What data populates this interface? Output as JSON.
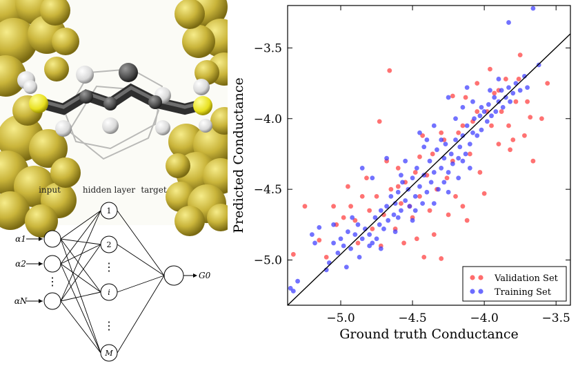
{
  "network": {
    "labels": {
      "input": "input",
      "hidden": "hidden layer",
      "target": "target"
    },
    "input_nodes": [
      "α1",
      "α2",
      "⋮",
      "αN"
    ],
    "hidden_nodes": [
      "1",
      "2",
      "⋮",
      "i",
      "⋮",
      "M"
    ],
    "output_label": "G0"
  },
  "colors": {
    "gold": "#c9b43a",
    "validation": "#ff3b3b",
    "training": "#3b3bff",
    "fit_line": "#000000"
  },
  "chart_data": {
    "type": "scatter",
    "xlabel": "Ground truth Conductance",
    "ylabel": "Predicted Conductance",
    "xlim": [
      -5.37,
      -3.4
    ],
    "ylim": [
      -5.32,
      -3.2
    ],
    "xticks": [
      -5.0,
      -4.5,
      -4.0,
      -3.5
    ],
    "yticks": [
      -5.0,
      -4.5,
      -4.0,
      -3.5
    ],
    "xtick_labels": [
      "−5.0",
      "−4.5",
      "−4.0",
      "−3.5"
    ],
    "ytick_labels": [
      "−5.0",
      "−4.5",
      "−4.0",
      "−3.5"
    ],
    "grid": false,
    "legend_position": "bottom-right",
    "fit_line": [
      [
        -5.37,
        -5.32
      ],
      [
        -3.4,
        -3.4
      ]
    ],
    "series": [
      {
        "name": "Validation Set",
        "color": "#ff3b3b",
        "points": [
          [
            -5.33,
            -4.96
          ],
          [
            -5.25,
            -4.62
          ],
          [
            -5.15,
            -4.86
          ],
          [
            -5.1,
            -4.98
          ],
          [
            -5.05,
            -4.62
          ],
          [
            -5.03,
            -4.75
          ],
          [
            -4.98,
            -4.7
          ],
          [
            -4.95,
            -4.48
          ],
          [
            -4.93,
            -4.62
          ],
          [
            -4.9,
            -4.72
          ],
          [
            -4.88,
            -4.88
          ],
          [
            -4.85,
            -4.55
          ],
          [
            -4.82,
            -4.42
          ],
          [
            -4.8,
            -4.65
          ],
          [
            -4.78,
            -4.78
          ],
          [
            -4.75,
            -4.55
          ],
          [
            -4.73,
            -4.02
          ],
          [
            -4.72,
            -4.9
          ],
          [
            -4.7,
            -4.68
          ],
          [
            -4.68,
            -4.3
          ],
          [
            -4.66,
            -3.66
          ],
          [
            -4.65,
            -4.5
          ],
          [
            -4.62,
            -4.78
          ],
          [
            -4.6,
            -4.35
          ],
          [
            -4.58,
            -4.6
          ],
          [
            -4.56,
            -4.88
          ],
          [
            -4.55,
            -4.45
          ],
          [
            -4.52,
            -4.62
          ],
          [
            -4.5,
            -4.7
          ],
          [
            -4.48,
            -4.38
          ],
          [
            -4.47,
            -4.85
          ],
          [
            -4.45,
            -4.55
          ],
          [
            -4.43,
            -4.12
          ],
          [
            -4.42,
            -4.98
          ],
          [
            -4.4,
            -4.4
          ],
          [
            -4.38,
            -4.65
          ],
          [
            -4.36,
            -4.25
          ],
          [
            -4.35,
            -4.82
          ],
          [
            -4.33,
            -4.5
          ],
          [
            -4.3,
            -4.99
          ],
          [
            -4.28,
            -4.15
          ],
          [
            -4.26,
            -4.42
          ],
          [
            -4.25,
            -4.68
          ],
          [
            -4.22,
            -4.3
          ],
          [
            -4.2,
            -4.55
          ],
          [
            -4.18,
            -4.1
          ],
          [
            -4.15,
            -4.62
          ],
          [
            -4.13,
            -3.85
          ],
          [
            -4.12,
            -4.72
          ],
          [
            -4.1,
            -4.25
          ],
          [
            -4.08,
            -4.02
          ],
          [
            -4.05,
            -3.75
          ],
          [
            -4.03,
            -4.38
          ],
          [
            -4.0,
            -4.53
          ],
          [
            -3.98,
            -3.95
          ],
          [
            -3.96,
            -3.65
          ],
          [
            -3.95,
            -4.05
          ],
          [
            -3.93,
            -3.82
          ],
          [
            -3.9,
            -4.18
          ],
          [
            -3.88,
            -3.95
          ],
          [
            -3.85,
            -3.72
          ],
          [
            -3.83,
            -4.05
          ],
          [
            -3.82,
            -4.22
          ],
          [
            -3.8,
            -4.15
          ],
          [
            -3.78,
            -3.88
          ],
          [
            -3.76,
            -3.72
          ],
          [
            -3.75,
            -3.55
          ],
          [
            -3.72,
            -4.12
          ],
          [
            -3.7,
            -3.88
          ],
          [
            -3.68,
            -3.99
          ],
          [
            -3.66,
            -4.3
          ],
          [
            -3.6,
            -4.0
          ],
          [
            -3.56,
            -3.75
          ],
          [
            -4.22,
            -3.84
          ],
          [
            -4.05,
            -3.95
          ],
          [
            -3.9,
            -3.8
          ],
          [
            -4.45,
            -4.27
          ],
          [
            -4.3,
            -4.1
          ],
          [
            -4.6,
            -4.48
          ],
          [
            -4.15,
            -4.05
          ]
        ]
      },
      {
        "name": "Training Set",
        "color": "#3b3bff",
        "points": [
          [
            -5.35,
            -5.2
          ],
          [
            -5.33,
            -5.22
          ],
          [
            -5.3,
            -5.15
          ],
          [
            -5.2,
            -4.82
          ],
          [
            -5.18,
            -4.88
          ],
          [
            -5.15,
            -4.77
          ],
          [
            -5.1,
            -5.07
          ],
          [
            -5.08,
            -5.02
          ],
          [
            -5.05,
            -4.88
          ],
          [
            -5.02,
            -4.95
          ],
          [
            -5.0,
            -4.85
          ],
          [
            -4.98,
            -4.9
          ],
          [
            -4.96,
            -5.05
          ],
          [
            -4.95,
            -4.8
          ],
          [
            -4.93,
            -4.92
          ],
          [
            -4.9,
            -4.82
          ],
          [
            -4.88,
            -4.75
          ],
          [
            -4.87,
            -4.98
          ],
          [
            -4.85,
            -4.85
          ],
          [
            -4.83,
            -4.78
          ],
          [
            -4.8,
            -4.9
          ],
          [
            -4.78,
            -4.88
          ],
          [
            -4.76,
            -4.7
          ],
          [
            -4.75,
            -4.85
          ],
          [
            -4.73,
            -4.75
          ],
          [
            -4.72,
            -4.65
          ],
          [
            -4.7,
            -4.78
          ],
          [
            -4.68,
            -4.62
          ],
          [
            -4.67,
            -4.72
          ],
          [
            -4.65,
            -4.55
          ],
          [
            -4.63,
            -4.68
          ],
          [
            -4.62,
            -4.6
          ],
          [
            -4.6,
            -4.52
          ],
          [
            -4.58,
            -4.65
          ],
          [
            -4.57,
            -4.45
          ],
          [
            -4.55,
            -4.58
          ],
          [
            -4.53,
            -4.5
          ],
          [
            -4.52,
            -4.62
          ],
          [
            -4.5,
            -4.42
          ],
          [
            -4.48,
            -4.55
          ],
          [
            -4.47,
            -4.35
          ],
          [
            -4.45,
            -4.48
          ],
          [
            -4.43,
            -4.6
          ],
          [
            -4.42,
            -4.4
          ],
          [
            -4.4,
            -4.52
          ],
          [
            -4.38,
            -4.3
          ],
          [
            -4.37,
            -4.45
          ],
          [
            -4.35,
            -4.38
          ],
          [
            -4.33,
            -4.22
          ],
          [
            -4.32,
            -4.5
          ],
          [
            -4.3,
            -4.35
          ],
          [
            -4.28,
            -4.28
          ],
          [
            -4.27,
            -4.18
          ],
          [
            -4.25,
            -4.38
          ],
          [
            -4.23,
            -4.25
          ],
          [
            -4.22,
            -4.32
          ],
          [
            -4.2,
            -4.15
          ],
          [
            -4.18,
            -4.28
          ],
          [
            -4.17,
            -4.2
          ],
          [
            -4.15,
            -4.12
          ],
          [
            -4.13,
            -4.25
          ],
          [
            -4.12,
            -4.05
          ],
          [
            -4.1,
            -4.18
          ],
          [
            -4.08,
            -4.1
          ],
          [
            -4.07,
            -4.0
          ],
          [
            -4.05,
            -4.12
          ],
          [
            -4.03,
            -3.98
          ],
          [
            -4.02,
            -4.08
          ],
          [
            -4.0,
            -3.95
          ],
          [
            -3.98,
            -4.02
          ],
          [
            -3.97,
            -3.9
          ],
          [
            -3.95,
            -3.98
          ],
          [
            -3.93,
            -3.85
          ],
          [
            -3.92,
            -3.95
          ],
          [
            -3.9,
            -3.88
          ],
          [
            -3.88,
            -3.8
          ],
          [
            -3.87,
            -3.92
          ],
          [
            -3.85,
            -3.85
          ],
          [
            -3.83,
            -3.78
          ],
          [
            -3.82,
            -3.88
          ],
          [
            -3.8,
            -3.82
          ],
          [
            -3.78,
            -3.75
          ],
          [
            -3.75,
            -3.8
          ],
          [
            -3.72,
            -3.7
          ],
          [
            -3.7,
            -3.78
          ],
          [
            -3.66,
            -3.22
          ],
          [
            -3.62,
            -3.62
          ],
          [
            -3.83,
            -3.32
          ],
          [
            -4.85,
            -4.35
          ],
          [
            -4.78,
            -4.42
          ],
          [
            -4.68,
            -4.28
          ],
          [
            -4.55,
            -4.3
          ],
          [
            -4.45,
            -4.1
          ],
          [
            -4.42,
            -4.2
          ],
          [
            -4.35,
            -4.05
          ],
          [
            -4.3,
            -4.15
          ],
          [
            -4.25,
            -3.85
          ],
          [
            -4.2,
            -4.0
          ],
          [
            -4.15,
            -3.92
          ],
          [
            -4.12,
            -3.78
          ],
          [
            -4.08,
            -3.88
          ],
          [
            -4.35,
            -4.6
          ],
          [
            -4.25,
            -4.52
          ],
          [
            -4.18,
            -4.42
          ],
          [
            -4.62,
            -4.8
          ],
          [
            -4.5,
            -4.72
          ],
          [
            -4.92,
            -4.7
          ],
          [
            -5.05,
            -4.75
          ],
          [
            -4.72,
            -4.92
          ],
          [
            -4.48,
            -4.65
          ],
          [
            -4.28,
            -4.45
          ],
          [
            -4.1,
            -4.35
          ],
          [
            -3.96,
            -3.8
          ],
          [
            -4.02,
            -3.92
          ],
          [
            -3.9,
            -3.72
          ],
          [
            -4.15,
            -4.3
          ],
          [
            -4.58,
            -4.4
          ],
          [
            -4.4,
            -4.15
          ],
          [
            -4.6,
            -4.7
          ],
          [
            -4.8,
            -4.82
          ]
        ]
      }
    ]
  }
}
